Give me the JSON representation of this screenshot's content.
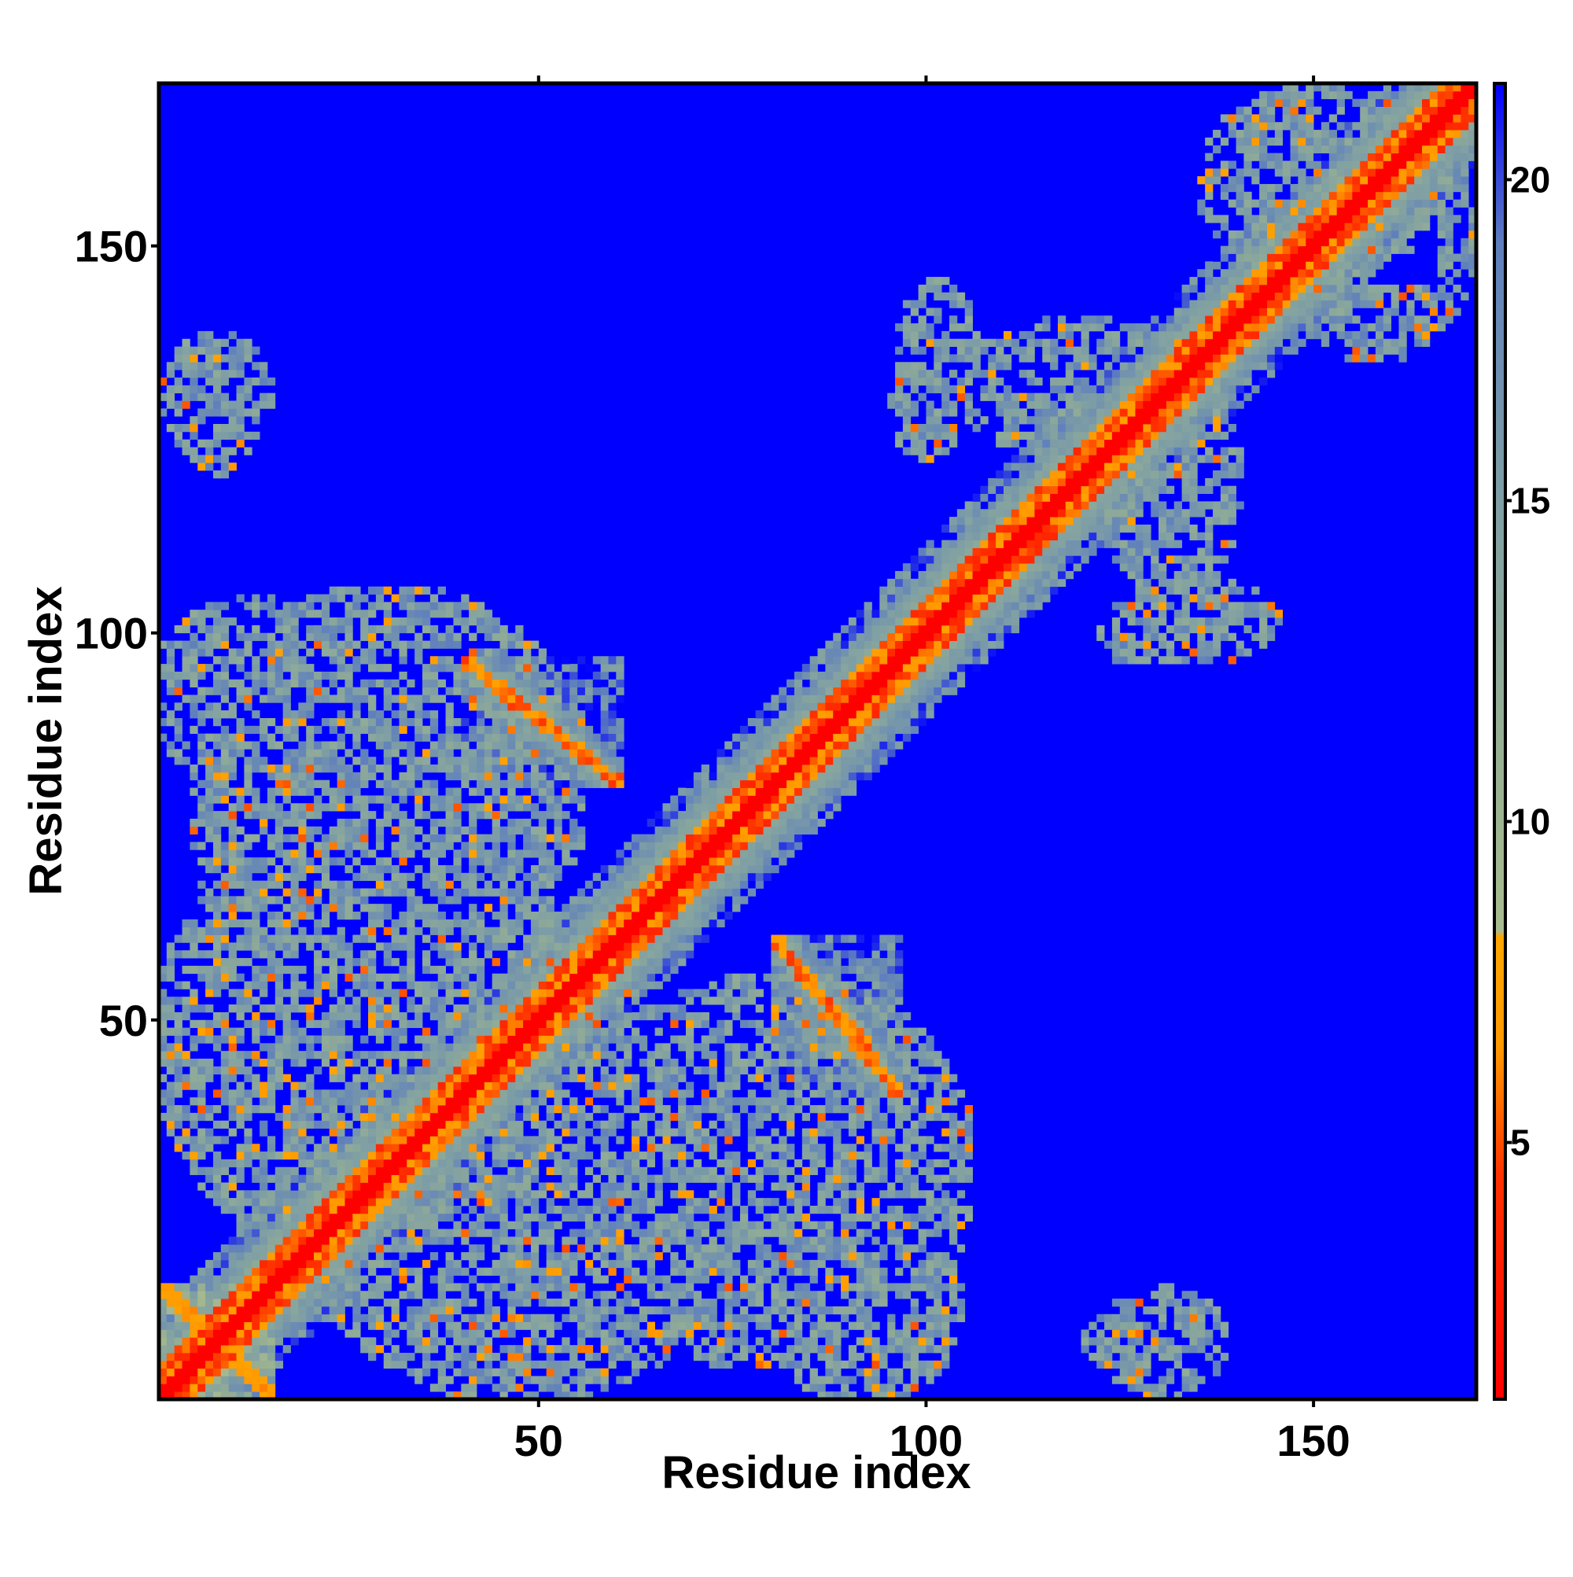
{
  "chart_data": {
    "type": "heatmap",
    "title": "",
    "xlabel": "Residue index",
    "ylabel": "Residue index",
    "n_residues": 170,
    "xlim": [
      1,
      170
    ],
    "ylim": [
      1,
      170
    ],
    "x_ticks": [
      50,
      100,
      150
    ],
    "y_ticks": [
      50,
      100,
      150
    ],
    "colorbar": {
      "ticks": [
        5,
        10,
        15,
        20
      ],
      "range": [
        1,
        21.5
      ],
      "stops": [
        {
          "value": 1,
          "color": "#ff0000"
        },
        {
          "value": 4.5,
          "color": "#ff3300"
        },
        {
          "value": 6.5,
          "color": "#ff9900"
        },
        {
          "value": 8.2,
          "color": "#ffa500"
        },
        {
          "value": 8.3,
          "color": "#a9bc8f"
        },
        {
          "value": 11,
          "color": "#98b092"
        },
        {
          "value": 15,
          "color": "#7f9fa4"
        },
        {
          "value": 19,
          "color": "#5f7fbd"
        },
        {
          "value": 21.5,
          "color": "#0000ff"
        }
      ],
      "background_color": "#0000ff"
    },
    "contact_regions": [
      {
        "name": "main-diagonal",
        "x": [
          1,
          170
        ],
        "y": [
          1,
          170
        ],
        "kind": "diagonal"
      },
      {
        "name": "antiparallel-hairpin-1",
        "x": [
          40,
          60
        ],
        "y": [
          80,
          96
        ],
        "kind": "anti-diagonal"
      },
      {
        "name": "antiparallel-hairpin-2",
        "x": [
          82,
          92
        ],
        "y": [
          44,
          58
        ],
        "kind": "anti-diagonal"
      },
      {
        "name": "n-term-cross",
        "x": [
          1,
          15
        ],
        "y": [
          1,
          15
        ],
        "kind": "cross"
      },
      {
        "name": "block-a",
        "x": [
          1,
          24
        ],
        "y": [
          80,
          96
        ],
        "kind": "patch"
      },
      {
        "name": "block-b",
        "x": [
          20,
          70
        ],
        "y": [
          1,
          60
        ],
        "kind": "patch"
      },
      {
        "name": "block-c",
        "x": [
          1,
          45
        ],
        "y": [
          20,
          75
        ],
        "kind": "patch"
      },
      {
        "name": "block-d",
        "x": [
          55,
          105
        ],
        "y": [
          5,
          55
        ],
        "kind": "patch"
      },
      {
        "name": "block-e",
        "x": [
          1,
          15
        ],
        "y": [
          122,
          138
        ],
        "kind": "patch"
      },
      {
        "name": "block-f",
        "x": [
          95,
          104
        ],
        "y": [
          122,
          135
        ],
        "kind": "patch"
      },
      {
        "name": "block-g",
        "x": [
          122,
          140
        ],
        "y": [
          104,
          135
        ],
        "kind": "patch"
      },
      {
        "name": "block-h",
        "x": [
          120,
          136
        ],
        "y": [
          3,
          13
        ],
        "kind": "patch"
      },
      {
        "name": "block-i",
        "x": [
          135,
          165
        ],
        "y": [
          145,
          170
        ],
        "kind": "patch"
      },
      {
        "name": "block-j",
        "x": [
          128,
          145
        ],
        "y": [
          96,
          106
        ],
        "kind": "patch"
      },
      {
        "name": "block-k",
        "x": [
          87,
          104
        ],
        "y": [
          1,
          25
        ],
        "kind": "patch"
      }
    ]
  }
}
